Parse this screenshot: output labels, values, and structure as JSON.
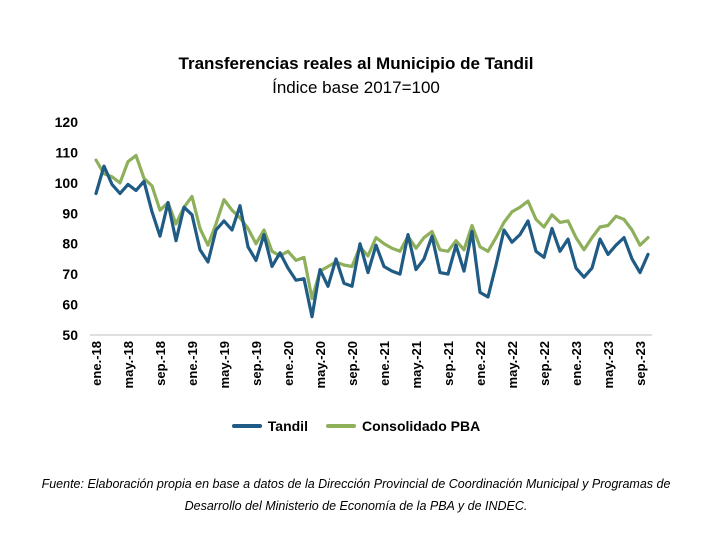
{
  "chart_data": {
    "type": "line",
    "title": "Transferencias reales al Municipio de Tandil",
    "subtitle": "Índice base 2017=100",
    "xlabel": "",
    "ylabel": "",
    "ylim": [
      50,
      120
    ],
    "yticks": [
      50,
      60,
      70,
      80,
      90,
      100,
      110,
      120
    ],
    "grid": false,
    "legend_position": "bottom",
    "x_tick_labels": [
      "ene.-18",
      "may.-18",
      "sep.-18",
      "ene.-19",
      "may.-19",
      "sep.-19",
      "ene.-20",
      "may.-20",
      "sep.-20",
      "ene.-21",
      "may.-21",
      "sep.-21",
      "ene.-22",
      "may.-22",
      "sep.-22",
      "ene.-23",
      "may.-23",
      "sep.-23"
    ],
    "x_tick_step_months": 4,
    "x": [
      "ene.-18",
      "feb.-18",
      "mar.-18",
      "abr.-18",
      "may.-18",
      "jun.-18",
      "jul.-18",
      "ago.-18",
      "sep.-18",
      "oct.-18",
      "nov.-18",
      "dic.-18",
      "ene.-19",
      "feb.-19",
      "mar.-19",
      "abr.-19",
      "may.-19",
      "jun.-19",
      "jul.-19",
      "ago.-19",
      "sep.-19",
      "oct.-19",
      "nov.-19",
      "dic.-19",
      "ene.-20",
      "feb.-20",
      "mar.-20",
      "abr.-20",
      "may.-20",
      "jun.-20",
      "jul.-20",
      "ago.-20",
      "sep.-20",
      "oct.-20",
      "nov.-20",
      "dic.-20",
      "ene.-21",
      "feb.-21",
      "mar.-21",
      "abr.-21",
      "may.-21",
      "jun.-21",
      "jul.-21",
      "ago.-21",
      "sep.-21",
      "oct.-21",
      "nov.-21",
      "dic.-21",
      "ene.-22",
      "feb.-22",
      "mar.-22",
      "abr.-22",
      "may.-22",
      "jun.-22",
      "jul.-22",
      "ago.-22",
      "sep.-22",
      "oct.-22",
      "nov.-22",
      "dic.-22",
      "ene.-23",
      "feb.-23",
      "mar.-23",
      "abr.-23",
      "may.-23",
      "jun.-23",
      "jul.-23",
      "ago.-23",
      "sep.-23",
      "oct.-23"
    ],
    "series": [
      {
        "name": "Tandil",
        "color": "#1f5b84",
        "values": [
          96.5,
          105.5,
          99.5,
          96.5,
          99.5,
          97.5,
          100.5,
          90.5,
          82.5,
          93.5,
          81.0,
          92.0,
          89.5,
          78.0,
          74.0,
          84.5,
          87.5,
          84.5,
          92.5,
          79.0,
          74.5,
          83.0,
          72.5,
          77.0,
          72.0,
          68.0,
          68.5,
          56.0,
          71.5,
          66.0,
          75.0,
          67.0,
          66.0,
          80.0,
          70.5,
          79.5,
          72.5,
          71.0,
          70.0,
          83.0,
          71.5,
          75.0,
          82.5,
          70.5,
          70.0,
          79.5,
          71.0,
          84.0,
          64.0,
          62.5,
          73.0,
          84.5,
          80.5,
          83.0,
          87.5,
          77.5,
          75.5,
          85.0,
          77.5,
          81.5,
          72.0,
          69.0,
          72.0,
          81.5,
          76.5,
          79.5,
          82.0,
          75.0,
          70.5,
          76.5
        ]
      },
      {
        "name": "Consolidado PBA",
        "color": "#8eb05b",
        "values": [
          107.5,
          103.0,
          102.0,
          100.0,
          107.0,
          109.0,
          101.5,
          99.0,
          91.0,
          93.5,
          86.5,
          92.0,
          95.5,
          85.0,
          79.5,
          86.5,
          94.5,
          91.0,
          88.5,
          85.0,
          80.0,
          84.5,
          77.5,
          76.0,
          77.5,
          74.5,
          75.5,
          62.0,
          71.0,
          72.5,
          74.0,
          73.0,
          72.5,
          79.0,
          76.0,
          82.0,
          80.0,
          78.5,
          77.5,
          82.5,
          78.5,
          82.0,
          84.0,
          78.0,
          77.5,
          81.0,
          78.0,
          86.0,
          79.0,
          77.5,
          82.0,
          87.0,
          90.5,
          92.0,
          94.0,
          88.0,
          85.5,
          89.5,
          87.0,
          87.5,
          82.0,
          78.0,
          82.0,
          85.5,
          86.0,
          89.0,
          88.0,
          84.5,
          79.5,
          82.0
        ]
      }
    ]
  },
  "source_note": "Fuente: Elaboración propia en base a datos de la Dirección Provincial de Coordinación Municipal y Programas de Desarrollo del Ministerio de Economía de la PBA y de INDEC."
}
